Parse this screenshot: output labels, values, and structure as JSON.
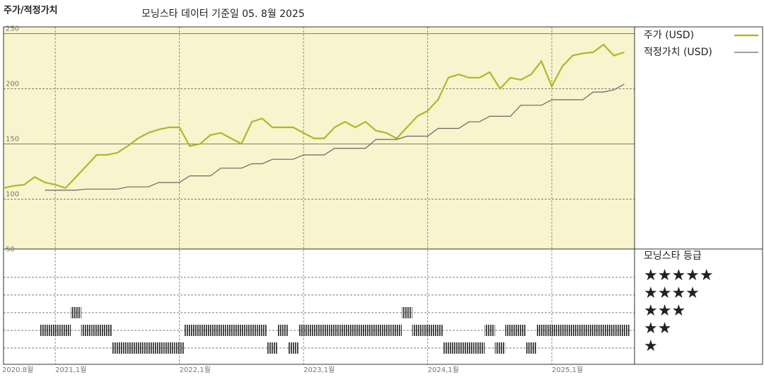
{
  "chart_data": [
    {
      "type": "line",
      "title": "주가/적정가치",
      "subtitle": "모닝스타 데이터 기준일 05. 8월 2025",
      "x": [
        "2020-08",
        "2020-09",
        "2020-10",
        "2020-11",
        "2020-12",
        "2021-01",
        "2021-02",
        "2021-03",
        "2021-04",
        "2021-05",
        "2021-06",
        "2021-07",
        "2021-08",
        "2021-09",
        "2021-10",
        "2021-11",
        "2021-12",
        "2022-01",
        "2022-02",
        "2022-03",
        "2022-04",
        "2022-05",
        "2022-06",
        "2022-07",
        "2022-08",
        "2022-09",
        "2022-10",
        "2022-11",
        "2022-12",
        "2023-01",
        "2023-02",
        "2023-03",
        "2023-04",
        "2023-05",
        "2023-06",
        "2023-07",
        "2023-08",
        "2023-09",
        "2023-10",
        "2023-11",
        "2023-12",
        "2024-01",
        "2024-02",
        "2024-03",
        "2024-04",
        "2024-05",
        "2024-06",
        "2024-07",
        "2024-08",
        "2024-09",
        "2024-10",
        "2024-11",
        "2024-12",
        "2025-01",
        "2025-02",
        "2025-03",
        "2025-04",
        "2025-05",
        "2025-06",
        "2025-07",
        "2025-08"
      ],
      "series": [
        {
          "name": "주가 (USD)",
          "color": "#b3b52b",
          "values": [
            110,
            112,
            113,
            120,
            115,
            113,
            110,
            120,
            130,
            140,
            140,
            142,
            148,
            155,
            160,
            163,
            165,
            165,
            148,
            150,
            158,
            160,
            155,
            150,
            170,
            173,
            165,
            165,
            165,
            160,
            155,
            155,
            165,
            170,
            165,
            170,
            162,
            160,
            155,
            165,
            175,
            180,
            190,
            210,
            213,
            210,
            210,
            215,
            200,
            210,
            208,
            213,
            225,
            202,
            220,
            230,
            232,
            233,
            240,
            230,
            233
          ]
        },
        {
          "name": "적정가치 (USD)",
          "color": "#666666",
          "values": [
            null,
            null,
            null,
            null,
            108,
            108,
            108,
            108,
            109,
            109,
            109,
            109,
            111,
            111,
            111,
            115,
            115,
            115,
            121,
            121,
            121,
            128,
            128,
            128,
            132,
            132,
            136,
            136,
            136,
            140,
            140,
            140,
            146,
            146,
            146,
            146,
            154,
            154,
            154,
            157,
            157,
            157,
            164,
            164,
            164,
            170,
            170,
            175,
            175,
            175,
            185,
            185,
            185,
            190,
            190,
            190,
            190,
            197,
            197,
            199,
            204
          ]
        }
      ],
      "xlim": [
        "2020-08",
        "2025-09"
      ],
      "xticks": [
        {
          "value": "2020-08",
          "label": "2020.8월"
        },
        {
          "value": "2021-01",
          "label": "2021,1월"
        },
        {
          "value": "2022-01",
          "label": "2022,1월"
        },
        {
          "value": "2023-01",
          "label": "2023,1월"
        },
        {
          "value": "2024-01",
          "label": "2024,1월"
        },
        {
          "value": "2025-01",
          "label": "2025,1월"
        }
      ],
      "ylim": [
        50,
        256
      ],
      "yticks": [
        50,
        100,
        150,
        200,
        250
      ],
      "grid": true,
      "background": "#f8f4cd"
    },
    {
      "type": "rating",
      "title": "모닝스타 등급",
      "x": [
        "2020-08",
        "2020-09",
        "2020-10",
        "2020-11",
        "2020-12",
        "2021-01",
        "2021-02",
        "2021-03",
        "2021-04",
        "2021-05",
        "2021-06",
        "2021-07",
        "2021-08",
        "2021-09",
        "2021-10",
        "2021-11",
        "2021-12",
        "2022-01",
        "2022-02",
        "2022-03",
        "2022-04",
        "2022-05",
        "2022-06",
        "2022-07",
        "2022-08",
        "2022-09",
        "2022-10",
        "2022-11",
        "2022-12",
        "2023-01",
        "2023-02",
        "2023-03",
        "2023-04",
        "2023-05",
        "2023-06",
        "2023-07",
        "2023-08",
        "2023-09",
        "2023-10",
        "2023-11",
        "2023-12",
        "2024-01",
        "2024-02",
        "2024-03",
        "2024-04",
        "2024-05",
        "2024-06",
        "2024-07",
        "2024-08",
        "2024-09",
        "2024-10",
        "2024-11",
        "2024-12",
        "2025-01",
        "2025-02",
        "2025-03",
        "2025-04",
        "2025-05",
        "2025-06",
        "2025-07",
        "2025-08"
      ],
      "values": [
        null,
        null,
        null,
        null,
        2,
        2,
        2,
        3,
        2,
        2,
        2,
        1,
        1,
        1,
        1,
        1,
        1,
        1,
        2,
        2,
        2,
        2,
        2,
        2,
        2,
        2,
        1,
        2,
        1,
        2,
        2,
        2,
        2,
        2,
        2,
        2,
        2,
        2,
        2,
        3,
        2,
        2,
        2,
        1,
        1,
        1,
        1,
        2,
        1,
        2,
        2,
        1,
        2,
        2,
        2,
        2,
        2,
        2,
        2,
        2,
        2
      ],
      "categories": [
        "★",
        "★★",
        "★★★",
        "★★★★",
        "★★★★★"
      ],
      "color": "#222222"
    }
  ]
}
